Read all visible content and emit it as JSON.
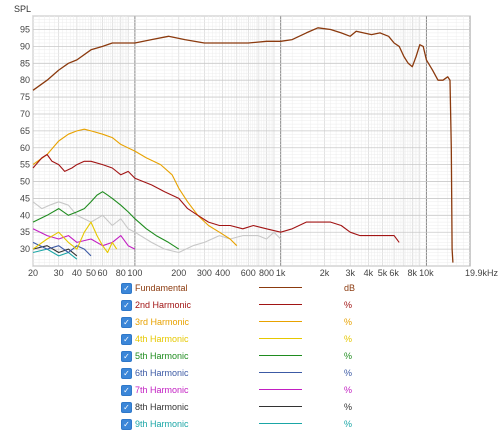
{
  "chart_data": {
    "type": "line",
    "title": "",
    "ylabel": "SPL",
    "xlabel": "",
    "x_scale": "log",
    "xlim": [
      20,
      19900
    ],
    "ylim": [
      25,
      99
    ],
    "grid": true,
    "x_ticks": [
      {
        "v": 20,
        "label": "20"
      },
      {
        "v": 30,
        "label": "30"
      },
      {
        "v": 40,
        "label": "40"
      },
      {
        "v": 50,
        "label": "50"
      },
      {
        "v": 60,
        "label": "60"
      },
      {
        "v": 80,
        "label": "80"
      },
      {
        "v": 100,
        "label": "100"
      },
      {
        "v": 200,
        "label": "200"
      },
      {
        "v": 300,
        "label": "300"
      },
      {
        "v": 400,
        "label": "400"
      },
      {
        "v": 600,
        "label": "600"
      },
      {
        "v": 800,
        "label": "800"
      },
      {
        "v": 1000,
        "label": "1k"
      },
      {
        "v": 2000,
        "label": "2k"
      },
      {
        "v": 3000,
        "label": "3k"
      },
      {
        "v": 4000,
        "label": "4k"
      },
      {
        "v": 5000,
        "label": "5k"
      },
      {
        "v": 6000,
        "label": "6k"
      },
      {
        "v": 8000,
        "label": "8k"
      },
      {
        "v": 10000,
        "label": "10k"
      },
      {
        "v": 19900,
        "label": "19.9kHz"
      }
    ],
    "y_ticks": [
      30,
      35,
      40,
      45,
      50,
      55,
      60,
      65,
      70,
      75,
      80,
      85,
      90,
      95
    ],
    "series": [
      {
        "name": "Fundamental",
        "unit": "dB",
        "color": "#8B3A0E",
        "points": [
          [
            20,
            77
          ],
          [
            25,
            80
          ],
          [
            30,
            83
          ],
          [
            35,
            85
          ],
          [
            40,
            86
          ],
          [
            50,
            89
          ],
          [
            60,
            90
          ],
          [
            70,
            91
          ],
          [
            100,
            91
          ],
          [
            130,
            92
          ],
          [
            170,
            93
          ],
          [
            220,
            92
          ],
          [
            300,
            91
          ],
          [
            400,
            91
          ],
          [
            600,
            91
          ],
          [
            800,
            91.5
          ],
          [
            1000,
            91.5
          ],
          [
            1200,
            92
          ],
          [
            1500,
            94
          ],
          [
            1800,
            95.5
          ],
          [
            2200,
            95
          ],
          [
            2600,
            94
          ],
          [
            3000,
            93
          ],
          [
            3300,
            94.5
          ],
          [
            3700,
            94
          ],
          [
            4200,
            93.5
          ],
          [
            4800,
            94
          ],
          [
            5500,
            93
          ],
          [
            6000,
            91
          ],
          [
            6500,
            90
          ],
          [
            7000,
            87
          ],
          [
            7500,
            85
          ],
          [
            8000,
            84
          ],
          [
            8500,
            87
          ],
          [
            9000,
            90.5
          ],
          [
            9500,
            90
          ],
          [
            10000,
            86
          ],
          [
            11000,
            83
          ],
          [
            12000,
            80
          ],
          [
            13000,
            80
          ],
          [
            14000,
            81
          ],
          [
            14500,
            80
          ],
          [
            14800,
            60
          ],
          [
            15000,
            30
          ],
          [
            15200,
            26
          ]
        ]
      },
      {
        "name": "2nd Harmonic",
        "unit": "%",
        "color": "#A11414",
        "points": [
          [
            20,
            54
          ],
          [
            23,
            57
          ],
          [
            25,
            58
          ],
          [
            27,
            56
          ],
          [
            30,
            55
          ],
          [
            33,
            53
          ],
          [
            37,
            54
          ],
          [
            40,
            55
          ],
          [
            45,
            56
          ],
          [
            50,
            56
          ],
          [
            60,
            55
          ],
          [
            70,
            54
          ],
          [
            80,
            52
          ],
          [
            90,
            53
          ],
          [
            100,
            51
          ],
          [
            130,
            49
          ],
          [
            160,
            47
          ],
          [
            200,
            45
          ],
          [
            230,
            42
          ],
          [
            270,
            40
          ],
          [
            320,
            38
          ],
          [
            380,
            37
          ],
          [
            450,
            37
          ],
          [
            550,
            36
          ],
          [
            650,
            37
          ],
          [
            800,
            36
          ],
          [
            1000,
            35
          ],
          [
            1200,
            36
          ],
          [
            1500,
            38
          ],
          [
            1800,
            38
          ],
          [
            2200,
            38
          ],
          [
            2600,
            37
          ],
          [
            3000,
            35
          ],
          [
            3500,
            34
          ],
          [
            4000,
            34
          ],
          [
            5000,
            34
          ],
          [
            6000,
            34
          ],
          [
            6500,
            32
          ]
        ]
      },
      {
        "name": "3rd Harmonic",
        "unit": "%",
        "color": "#E8A200",
        "points": [
          [
            20,
            55
          ],
          [
            25,
            58
          ],
          [
            30,
            62
          ],
          [
            35,
            64
          ],
          [
            40,
            65
          ],
          [
            45,
            65.5
          ],
          [
            50,
            65
          ],
          [
            60,
            64
          ],
          [
            70,
            63
          ],
          [
            80,
            61
          ],
          [
            100,
            59
          ],
          [
            120,
            57
          ],
          [
            150,
            55
          ],
          [
            180,
            52
          ],
          [
            200,
            48
          ],
          [
            230,
            44
          ],
          [
            270,
            40
          ],
          [
            320,
            37
          ],
          [
            380,
            35
          ],
          [
            450,
            33
          ],
          [
            500,
            31
          ]
        ]
      },
      {
        "name": "4th Harmonic",
        "unit": "%",
        "color": "#E6C800",
        "points": [
          [
            20,
            30
          ],
          [
            25,
            33
          ],
          [
            30,
            35
          ],
          [
            35,
            32
          ],
          [
            40,
            30
          ],
          [
            45,
            35
          ],
          [
            50,
            38
          ],
          [
            55,
            34
          ],
          [
            60,
            31
          ],
          [
            65,
            29
          ],
          [
            70,
            32
          ],
          [
            75,
            30
          ]
        ]
      },
      {
        "name": "5th Harmonic",
        "unit": "%",
        "color": "#1F8C1F",
        "points": [
          [
            20,
            38
          ],
          [
            25,
            40
          ],
          [
            30,
            42
          ],
          [
            35,
            40
          ],
          [
            40,
            41
          ],
          [
            45,
            42
          ],
          [
            50,
            44
          ],
          [
            55,
            46
          ],
          [
            60,
            47
          ],
          [
            65,
            46
          ],
          [
            70,
            45
          ],
          [
            80,
            43
          ],
          [
            90,
            41
          ],
          [
            100,
            39
          ],
          [
            120,
            36
          ],
          [
            140,
            34
          ],
          [
            170,
            32
          ],
          [
            200,
            30
          ]
        ]
      },
      {
        "name": "6th Harmonic",
        "unit": "%",
        "color": "#3C5AA5",
        "points": [
          [
            20,
            32
          ],
          [
            25,
            30
          ],
          [
            30,
            31
          ],
          [
            35,
            29
          ],
          [
            40,
            31
          ],
          [
            45,
            30
          ],
          [
            50,
            28
          ]
        ]
      },
      {
        "name": "7th Harmonic",
        "unit": "%",
        "color": "#C21EC2",
        "points": [
          [
            20,
            36
          ],
          [
            25,
            34
          ],
          [
            30,
            33
          ],
          [
            35,
            34
          ],
          [
            40,
            32
          ],
          [
            50,
            33
          ],
          [
            60,
            31
          ],
          [
            70,
            32
          ],
          [
            80,
            34
          ],
          [
            90,
            31
          ],
          [
            100,
            30
          ]
        ]
      },
      {
        "name": "8th Harmonic",
        "unit": "%",
        "color": "#333333",
        "points": [
          [
            20,
            30
          ],
          [
            25,
            31
          ],
          [
            30,
            29
          ],
          [
            35,
            30
          ],
          [
            40,
            28
          ]
        ]
      },
      {
        "name": "9th Harmonic",
        "unit": "%",
        "color": "#1AA6A6",
        "points": [
          [
            20,
            29
          ],
          [
            25,
            30
          ],
          [
            30,
            28
          ],
          [
            35,
            29
          ],
          [
            40,
            27
          ]
        ]
      },
      {
        "name": "",
        "unit": "",
        "color": "#C8C8C8",
        "points": [
          [
            20,
            44
          ],
          [
            23,
            42
          ],
          [
            26,
            43
          ],
          [
            30,
            44
          ],
          [
            35,
            43
          ],
          [
            40,
            40
          ],
          [
            50,
            38
          ],
          [
            60,
            40
          ],
          [
            70,
            37
          ],
          [
            80,
            39
          ],
          [
            90,
            36
          ],
          [
            100,
            35
          ],
          [
            130,
            32
          ],
          [
            160,
            30
          ],
          [
            200,
            29
          ],
          [
            250,
            31
          ],
          [
            300,
            32
          ],
          [
            380,
            34
          ],
          [
            450,
            33
          ],
          [
            550,
            34
          ],
          [
            700,
            34
          ],
          [
            800,
            33
          ],
          [
            900,
            35
          ],
          [
            1000,
            33
          ]
        ]
      }
    ]
  },
  "legend": [
    {
      "name": "Fundamental",
      "unit": "dB",
      "color": "#8B3A0E",
      "checked": true
    },
    {
      "name": "2nd Harmonic",
      "unit": "%",
      "color": "#A11414",
      "checked": true
    },
    {
      "name": "3rd Harmonic",
      "unit": "%",
      "color": "#E8A200",
      "checked": true
    },
    {
      "name": "4th Harmonic",
      "unit": "%",
      "color": "#E6C800",
      "checked": true
    },
    {
      "name": "5th Harmonic",
      "unit": "%",
      "color": "#1F8C1F",
      "checked": true
    },
    {
      "name": "6th Harmonic",
      "unit": "%",
      "color": "#3C5AA5",
      "checked": true
    },
    {
      "name": "7th Harmonic",
      "unit": "%",
      "color": "#C21EC2",
      "checked": true
    },
    {
      "name": "8th Harmonic",
      "unit": "%",
      "color": "#333333",
      "checked": true
    },
    {
      "name": "9th Harmonic",
      "unit": "%",
      "color": "#1AA6A6",
      "checked": true
    }
  ],
  "check_glyph": "✓"
}
